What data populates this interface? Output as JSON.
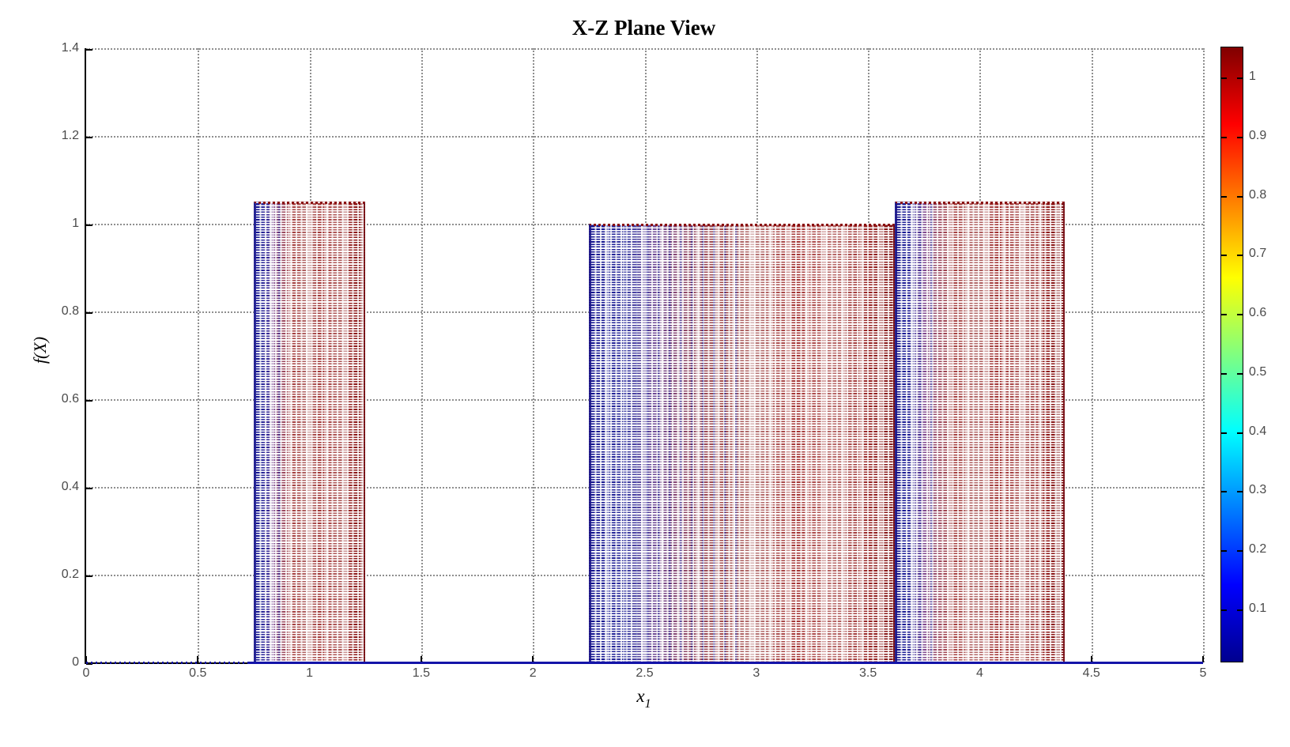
{
  "title": "X-Z Plane View",
  "chart_data": {
    "type": "bar",
    "note": "Side (X-Z plane) projection of a 3D dotted mesh: three rectangular blocks of dense dashed lines, dark blue at each block's left edge fading to dark red",
    "title": "X-Z Plane View",
    "xlabel": "x",
    "xlabel_subscript": "1",
    "ylabel": "f(X)",
    "xlim": [
      0,
      5
    ],
    "ylim": [
      0,
      1.4
    ],
    "x_ticks": [
      0,
      0.5,
      1,
      1.5,
      2,
      2.5,
      3,
      3.5,
      4,
      4.5,
      5
    ],
    "y_ticks": [
      0,
      0.2,
      0.4,
      0.6,
      0.8,
      1,
      1.2,
      1.4
    ],
    "grid": true,
    "grid_style": "dotted",
    "blocks": [
      {
        "x_start": 0.75,
        "x_end": 1.25,
        "height": 1.05,
        "style": "a",
        "stripe_width_pct": 26
      },
      {
        "x_start": 2.25,
        "x_end": 3.62,
        "height": 1.0,
        "style": "b",
        "stripe_width_pct": 50
      },
      {
        "x_start": 3.62,
        "x_end": 4.38,
        "height": 1.05,
        "style": "a",
        "stripe_width_pct": 24
      }
    ],
    "baseline": {
      "y": 0,
      "solid_from_x": 0.73,
      "solid_to_x": 5,
      "dotted_from_x": 0,
      "color": "#1414a8"
    },
    "colorbar": {
      "colormap": "jet",
      "min": 0.01,
      "max": 1.05,
      "ticks": [
        0.1,
        0.2,
        0.3,
        0.4,
        0.5,
        0.6,
        0.7,
        0.8,
        0.9,
        1
      ],
      "gradient_stops_bottom_to_top": [
        "#00008f",
        "#0000ff",
        "#00ffff",
        "#80ff80",
        "#ffff00",
        "#ff0000",
        "#800000"
      ],
      "gradient_stop_positions": [
        0,
        0.125,
        0.375,
        0.5,
        0.625,
        0.875,
        1
      ]
    },
    "colors": {
      "mesh_red": "#8b1515",
      "mesh_blue": "#11118f",
      "grid": "#8f8f8f",
      "axis": "#000000",
      "tick_label": "#4a4a4a"
    }
  }
}
